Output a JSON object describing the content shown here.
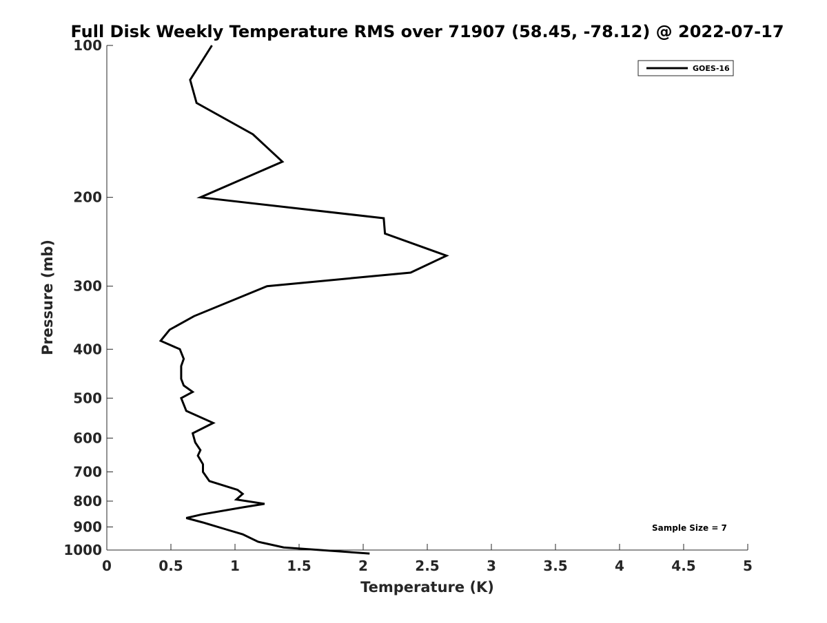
{
  "chart_data": {
    "type": "line",
    "title": "Full Disk Weekly Temperature RMS over 71907 (58.45, -78.12) @ 2022-07-17",
    "xlabel": "Temperature (K)",
    "ylabel": "Pressure (mb)",
    "xlim": [
      0,
      5
    ],
    "ylim": [
      100,
      1000
    ],
    "yscale": "log",
    "yreversed": true,
    "xticks": [
      0,
      0.5,
      1,
      1.5,
      2,
      2.5,
      3,
      3.5,
      4,
      4.5,
      5
    ],
    "xtick_labels": [
      "0",
      "0.5",
      "1",
      "1.5",
      "2",
      "2.5",
      "3",
      "3.5",
      "4",
      "4.5",
      "5"
    ],
    "yticks": [
      100,
      200,
      300,
      400,
      500,
      600,
      700,
      800,
      900,
      1000
    ],
    "ytick_labels": [
      "100",
      "200",
      "300",
      "400",
      "500",
      "600",
      "700",
      "800",
      "900",
      "1000"
    ],
    "grid": false,
    "legend_position": "top-right",
    "series": [
      {
        "name": "GOES-16",
        "color": "#000000",
        "x": [
          0.82,
          0.65,
          0.7,
          1.14,
          1.37,
          0.73,
          2.16,
          2.17,
          2.65,
          2.37,
          1.25,
          0.68,
          0.49,
          0.42,
          0.57,
          0.6,
          0.58,
          0.58,
          0.6,
          0.67,
          0.58,
          0.62,
          0.83,
          0.67,
          0.69,
          0.73,
          0.71,
          0.75,
          0.75,
          0.8,
          1.02,
          1.06,
          1.01,
          1.23,
          1.06,
          0.74,
          0.62,
          0.75,
          0.93,
          1.06,
          1.18,
          1.38,
          2.05
        ],
        "y": [
          100,
          117,
          130,
          150,
          170,
          200,
          220,
          236,
          261,
          282,
          300,
          344,
          366,
          385,
          400,
          418,
          432,
          458,
          472,
          486,
          500,
          530,
          560,
          587,
          612,
          634,
          650,
          676,
          700,
          730,
          760,
          774,
          794,
          810,
          823,
          850,
          864,
          882,
          910,
          931,
          963,
          988,
          1016
        ]
      }
    ],
    "annotations": [
      "Sample Size = 7"
    ]
  }
}
